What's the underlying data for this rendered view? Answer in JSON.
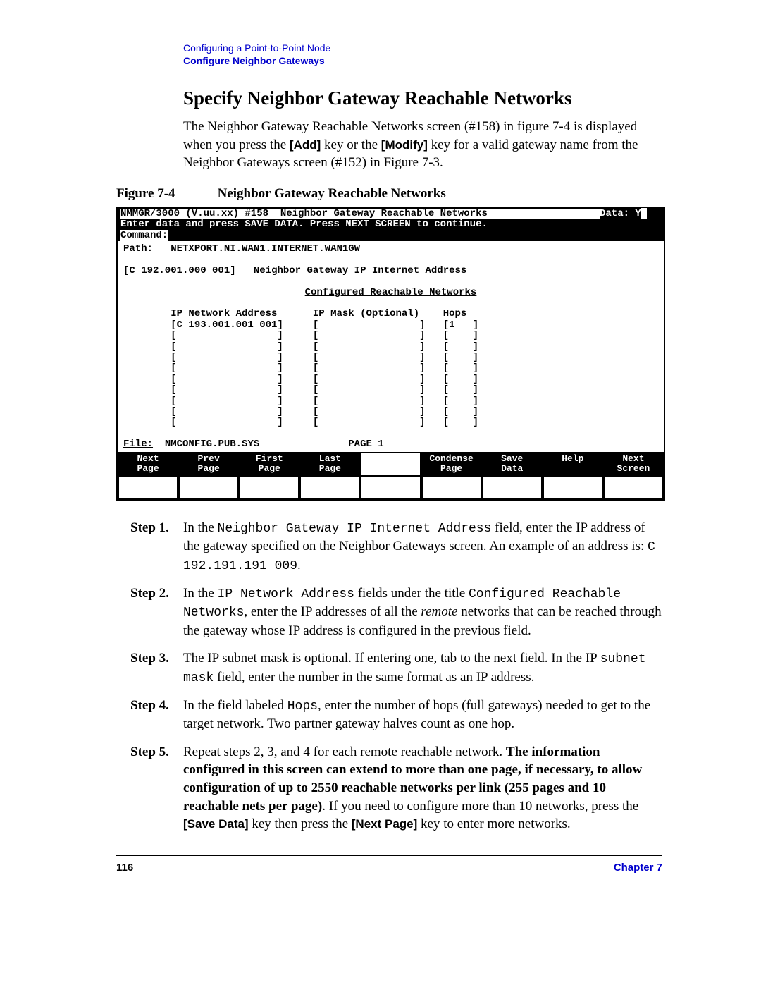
{
  "header": {
    "line1": "Configuring a Point-to-Point Node",
    "line2": "Configure Neighbor Gateways"
  },
  "title": "Specify Neighbor Gateway Reachable Networks",
  "intro_parts": {
    "p1": "The Neighbor Gateway Reachable Networks screen (#158) in figure 7-4 is displayed when you press the ",
    "k1": "[Add]",
    "p2": " key or the ",
    "k2": "[Modify]",
    "p3": " key for a valid gateway name from the Neighbor Gateways screen (#152) in Figure 7-3."
  },
  "figure": {
    "label": "Figure 7-4",
    "title": "Neighbor Gateway Reachable Networks"
  },
  "terminal": {
    "top1_left": "NMMGR/3000 (V.uu.xx) #158  Neighbor Gateway Reachable Networks",
    "top1_right": "Data: Y",
    "top2": "Enter data and press SAVE DATA. Press NEXT SCREEN to continue.",
    "cmd_label": "Command:",
    "path_label": "Path:",
    "path_value": "NETXPORT.NI.WAN1.INTERNET.WAN1GW",
    "gw_ip_field": "[C 192.001.000 001]",
    "gw_ip_label": "Neighbor Gateway IP Internet Address",
    "config_title": "Configured Reachable Networks",
    "col1": "IP Network Address",
    "col2": "IP Mask (Optional)",
    "col3": "Hops",
    "row1_ip": "[C 193.001.001 001]",
    "row1_hops": "[1   ]",
    "empty_ip": "[                 ]",
    "empty_mask": "[                 ]",
    "empty_hops": "[    ]",
    "file_label": "File:",
    "file_value": "NMCONFIG.PUB.SYS",
    "page_label": "PAGE 1",
    "fkeys": [
      "Next\nPage",
      "Prev\nPage",
      "First\nPage",
      "Last\nPage",
      "",
      "Condense\nPage",
      "Save\nData",
      "Help",
      "Next\nScreen"
    ]
  },
  "steps": [
    {
      "label": "Step 1.",
      "segments": [
        {
          "t": "In the ",
          "c": ""
        },
        {
          "t": "Neighbor Gateway IP Internet Address",
          "c": "mono"
        },
        {
          "t": " field, enter the IP address of the gateway specified on the Neighbor Gateways screen. An example of an address is: ",
          "c": ""
        },
        {
          "t": "C 192.191.191 009",
          "c": "mono"
        },
        {
          "t": ".",
          "c": ""
        }
      ]
    },
    {
      "label": "Step 2.",
      "segments": [
        {
          "t": "In the ",
          "c": ""
        },
        {
          "t": "IP Network Address",
          "c": "mono"
        },
        {
          "t": " fields under the title ",
          "c": ""
        },
        {
          "t": "Configured Reachable Networks",
          "c": "mono"
        },
        {
          "t": ", enter the IP addresses of all the ",
          "c": ""
        },
        {
          "t": "remote",
          "c": "i"
        },
        {
          "t": " networks that can be reached through the gateway whose IP address is configured in the previous field.",
          "c": ""
        }
      ]
    },
    {
      "label": "Step 3.",
      "segments": [
        {
          "t": "The IP subnet mask is optional. If entering one, tab to the next field. In the IP ",
          "c": ""
        },
        {
          "t": "subnet mask",
          "c": "mono"
        },
        {
          "t": " field, enter the number in the same format as an IP address.",
          "c": ""
        }
      ]
    },
    {
      "label": "Step 4.",
      "segments": [
        {
          "t": "In the field labeled ",
          "c": ""
        },
        {
          "t": "Hops",
          "c": "mono"
        },
        {
          "t": ", enter the number of hops (full gateways) needed to get to the target network. Two partner gateway halves count as one hop.",
          "c": ""
        }
      ]
    },
    {
      "label": "Step 5.",
      "segments": [
        {
          "t": "Repeat steps 2, 3, and 4 for each remote reachable network. ",
          "c": ""
        },
        {
          "t": "The information configured in this screen can extend to more than one page, if necessary, to allow configuration of up to 2550 reachable networks per link (255 pages and 10 reachable nets per page)",
          "c": "b"
        },
        {
          "t": ". If you need to configure more than 10 networks, press the ",
          "c": ""
        },
        {
          "t": "[Save Data]",
          "c": "sans"
        },
        {
          "t": " key then press the ",
          "c": ""
        },
        {
          "t": "[Next Page]",
          "c": "sans"
        },
        {
          "t": " key to enter more networks.",
          "c": ""
        }
      ]
    }
  ],
  "footer": {
    "page": "116",
    "chapter": "Chapter 7"
  }
}
